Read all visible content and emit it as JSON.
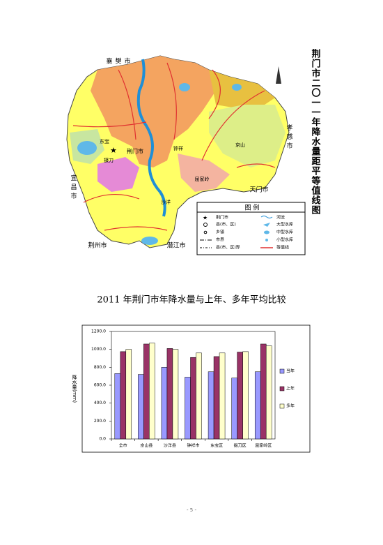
{
  "map": {
    "title": "荆门市二〇一一年降水量距平等值线图",
    "places": [
      "襄樊市",
      "孝感市",
      "宜昌市",
      "天门市",
      "潜江市",
      "荆州市",
      "钟祥",
      "京山",
      "东宝",
      "荆门市",
      "掇刀",
      "沙洋",
      "屈家岭"
    ],
    "legend": {
      "title": "图 例",
      "items": [
        "荆门市",
        "县(市、区)",
        "乡镇",
        "市界",
        "县(市、区)界",
        "河流",
        "大型水库",
        "中型水库",
        "小型水库",
        "等值线"
      ]
    }
  },
  "chart_data": {
    "type": "bar",
    "title": "2011 年荆门市年降水量与上年、多年平均比较",
    "y_label": "降水量(mm)",
    "categories": [
      "全市",
      "京山县",
      "沙洋县",
      "钟祥市",
      "东宝区",
      "掇刀区",
      "屈家岭区"
    ],
    "series": [
      {
        "name": "当年",
        "color": "#9999ff",
        "values": [
          730,
          720,
          800,
          690,
          750,
          680,
          750
        ]
      },
      {
        "name": "上年",
        "color": "#993366",
        "values": [
          975,
          1060,
          1010,
          910,
          920,
          970,
          1060
        ]
      },
      {
        "name": "多年",
        "color": "#ffffcc",
        "values": [
          1000,
          1070,
          1000,
          960,
          960,
          975,
          1040
        ]
      }
    ],
    "ylim": [
      0,
      1200
    ],
    "yticks": [
      {
        "value": 0,
        "label": "0.0"
      },
      {
        "value": 200,
        "label": "200.0"
      },
      {
        "value": 400,
        "label": "400.0"
      },
      {
        "value": 600,
        "label": "600.0"
      },
      {
        "value": 800,
        "label": "800.0"
      },
      {
        "value": 1000,
        "label": "1000.0"
      },
      {
        "value": 1200,
        "label": "1200.0"
      }
    ]
  },
  "footer": {
    "page": "- 5 -"
  }
}
